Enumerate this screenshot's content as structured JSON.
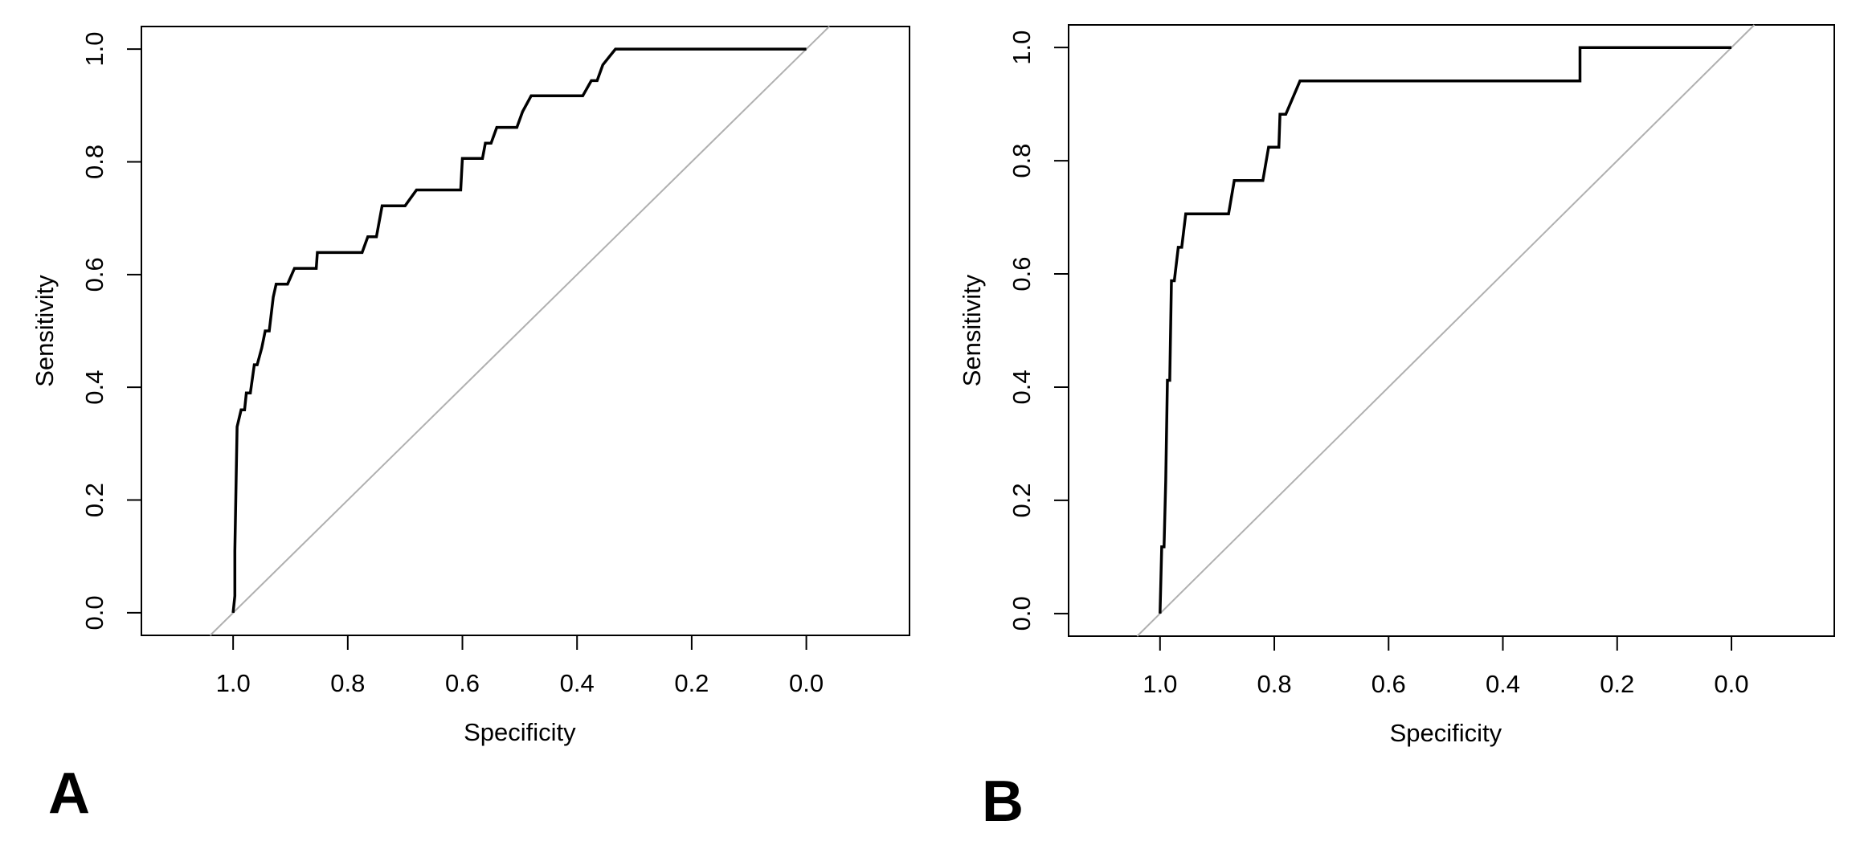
{
  "colors": {
    "curve": "#000000",
    "reference": "#b0b0b0",
    "frame": "#000000",
    "background": "#ffffff"
  },
  "chart_data": [
    {
      "panel_label": "A",
      "type": "line",
      "title": "",
      "xlabel": "Specificity",
      "ylabel": "Sensitivity",
      "xlim": [
        1.16,
        -0.18
      ],
      "ylim": [
        -0.04,
        1.04
      ],
      "x_ticks": [
        1.0,
        0.8,
        0.6,
        0.4,
        0.2,
        0.0
      ],
      "x_tick_labels": [
        "1.0",
        "0.8",
        "0.6",
        "0.4",
        "0.2",
        "0.0"
      ],
      "y_ticks": [
        0.0,
        0.2,
        0.4,
        0.6,
        0.8,
        1.0
      ],
      "y_tick_labels": [
        "0.0",
        "0.2",
        "0.4",
        "0.6",
        "0.8",
        "1.0"
      ],
      "reference_line": {
        "from": [
          1.04,
          -0.04
        ],
        "to": [
          -0.04,
          1.04
        ]
      },
      "series": [
        {
          "name": "ROC curve",
          "x": [
            1.0,
            0.997,
            0.997,
            0.993,
            0.993,
            0.986,
            0.98,
            0.977,
            0.97,
            0.963,
            0.958,
            0.95,
            0.944,
            0.937,
            0.93,
            0.925,
            0.905,
            0.893,
            0.855,
            0.853,
            0.775,
            0.765,
            0.75,
            0.74,
            0.7,
            0.68,
            0.603,
            0.6,
            0.565,
            0.56,
            0.55,
            0.54,
            0.505,
            0.495,
            0.48,
            0.39,
            0.375,
            0.365,
            0.355,
            0.333,
            0.0
          ],
          "y": [
            0.0,
            0.03,
            0.11,
            0.33,
            0.33,
            0.36,
            0.36,
            0.39,
            0.39,
            0.44,
            0.44,
            0.47,
            0.5,
            0.5,
            0.56,
            0.583,
            0.583,
            0.611,
            0.611,
            0.639,
            0.639,
            0.667,
            0.667,
            0.722,
            0.722,
            0.75,
            0.75,
            0.806,
            0.806,
            0.833,
            0.833,
            0.861,
            0.861,
            0.889,
            0.917,
            0.917,
            0.944,
            0.944,
            0.972,
            1.0,
            1.0
          ]
        }
      ]
    },
    {
      "panel_label": "B",
      "type": "line",
      "title": "",
      "xlabel": "Specificity",
      "ylabel": "Sensitivity",
      "xlim": [
        1.16,
        -0.18
      ],
      "ylim": [
        -0.04,
        1.04
      ],
      "x_ticks": [
        1.0,
        0.8,
        0.6,
        0.4,
        0.2,
        0.0
      ],
      "x_tick_labels": [
        "1.0",
        "0.8",
        "0.6",
        "0.4",
        "0.2",
        "0.0"
      ],
      "y_ticks": [
        0.0,
        0.2,
        0.4,
        0.6,
        0.8,
        1.0
      ],
      "y_tick_labels": [
        "0.0",
        "0.2",
        "0.4",
        "0.6",
        "0.8",
        "1.0"
      ],
      "reference_line": {
        "from": [
          1.04,
          -0.04
        ],
        "to": [
          -0.04,
          1.04
        ]
      },
      "series": [
        {
          "name": "ROC curve",
          "x": [
            1.0,
            0.997,
            0.993,
            0.99,
            0.987,
            0.983,
            0.98,
            0.975,
            0.968,
            0.962,
            0.955,
            0.945,
            0.88,
            0.87,
            0.82,
            0.81,
            0.792,
            0.79,
            0.78,
            0.755,
            0.265,
            0.265,
            0.0
          ],
          "y": [
            0.0,
            0.118,
            0.118,
            0.235,
            0.412,
            0.412,
            0.588,
            0.588,
            0.647,
            0.647,
            0.706,
            0.706,
            0.706,
            0.765,
            0.765,
            0.824,
            0.824,
            0.882,
            0.882,
            0.941,
            0.941,
            1.0,
            1.0
          ]
        }
      ]
    }
  ]
}
